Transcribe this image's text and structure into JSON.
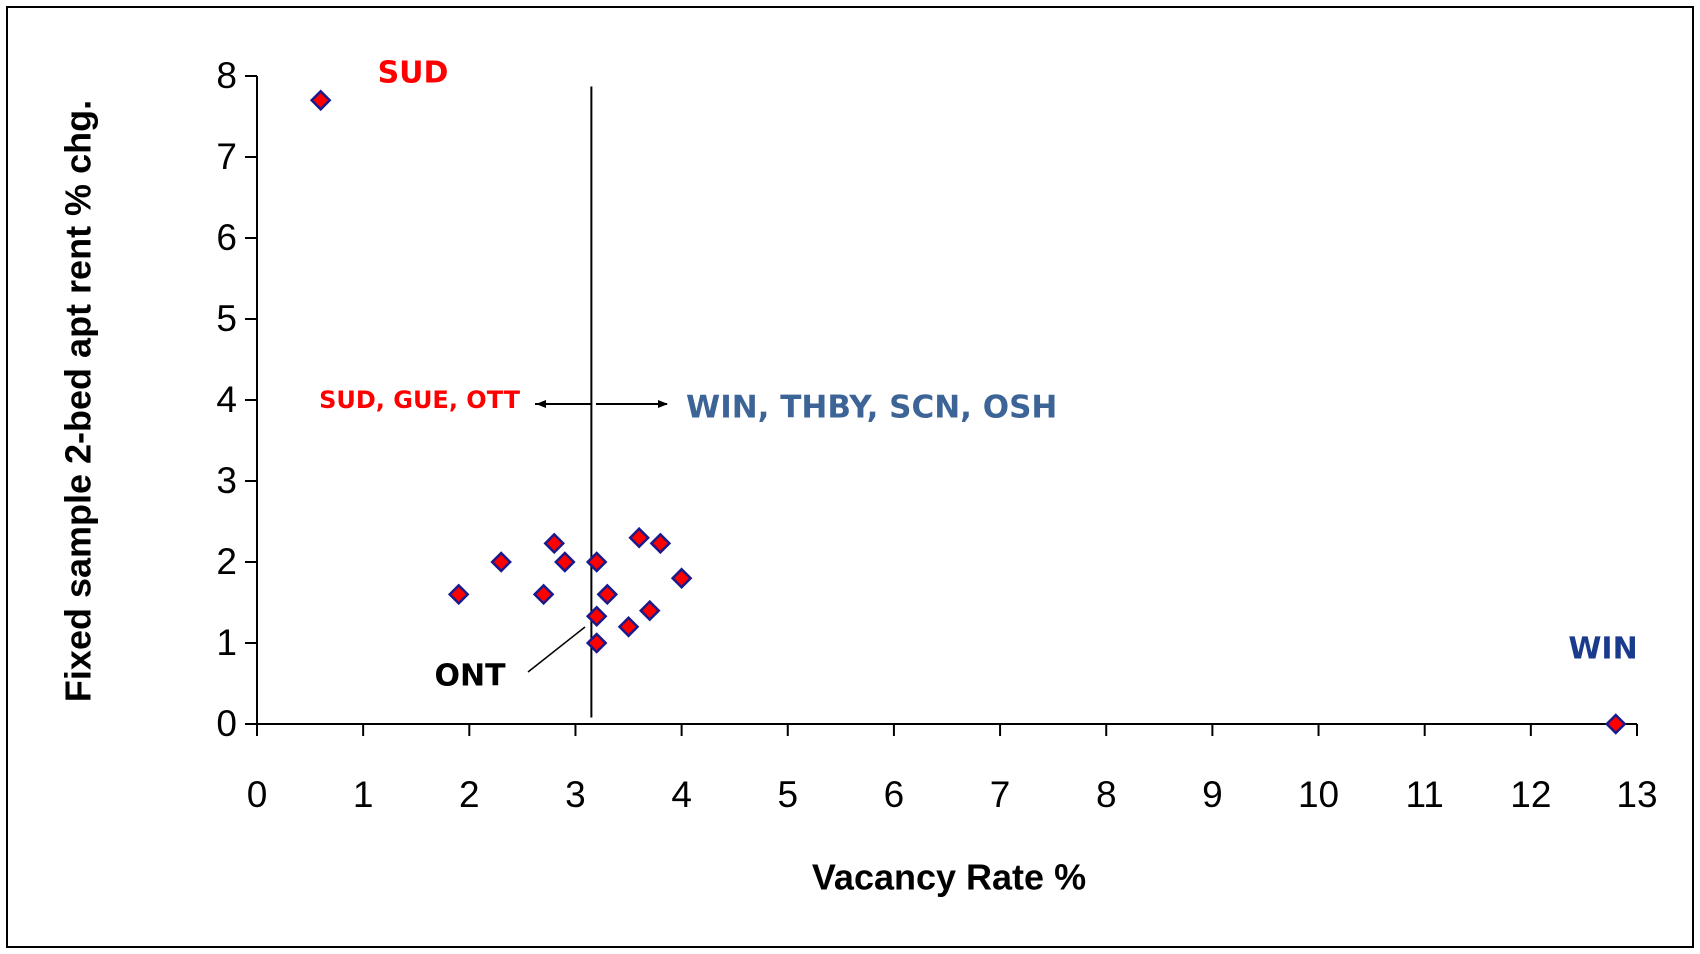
{
  "chart_data": {
    "type": "scatter",
    "xlabel": "Vacancy Rate %",
    "ylabel": "Fixed sample 2-bed apt rent % chg.",
    "xlim": [
      0,
      13
    ],
    "ylim": [
      0,
      8
    ],
    "xticks": [
      0,
      1,
      2,
      3,
      4,
      5,
      6,
      7,
      8,
      9,
      10,
      11,
      12,
      13
    ],
    "yticks": [
      0,
      1,
      2,
      3,
      4,
      5,
      6,
      7,
      8
    ],
    "grid": false,
    "marker_color": "#ff0000",
    "marker_edge_color": "#1a1a8c",
    "x": [
      0.6,
      1.9,
      2.3,
      2.7,
      2.8,
      2.9,
      3.2,
      3.3,
      3.2,
      3.2,
      3.5,
      3.6,
      3.7,
      3.8,
      4.0,
      12.8
    ],
    "y": [
      7.7,
      1.6,
      2.0,
      1.6,
      2.23,
      2.0,
      2.0,
      1.6,
      1.33,
      1.0,
      1.2,
      2.3,
      1.4,
      2.23,
      1.8,
      0.0
    ],
    "reference_line": {
      "x": 3.15
    },
    "annotations": [
      {
        "text": "SUD",
        "color": "#ff0000"
      },
      {
        "text": "SUD, GUE, OTT",
        "color": "#ff0000"
      },
      {
        "text": "WIN, THBY, SCN, OSH",
        "color": "#3d6496"
      },
      {
        "text": "WIN",
        "color": "#1a3a8c"
      },
      {
        "text": "ONT",
        "color": "#000000"
      }
    ]
  }
}
